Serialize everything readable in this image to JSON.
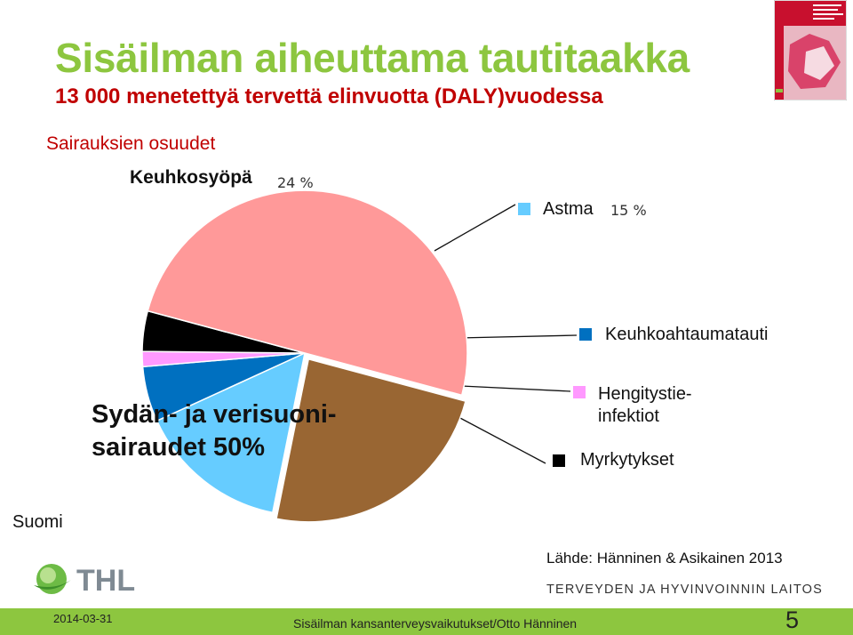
{
  "slide": {
    "title": "Sisäilman aiheuttama tautitaakka",
    "subtitle": "13 000 menetettyä tervettä elinvuotta (DALY)vuodessa",
    "country": "Suomi",
    "source": "Lähde: Hänninen & Asikainen 2013",
    "institute": "TERVEYDEN JA HYVINVOINNIN LAITOS",
    "logo_text": "THL",
    "footer": {
      "date": "2014-03-31",
      "text": "Sisäilman kansanterveysvaikutukset/Otto Hänninen",
      "page": "5"
    }
  },
  "chart_data": {
    "type": "pie",
    "title": "Sairauksien osuudet",
    "labels": {
      "lung_cancer": "Keuhkosyöpä",
      "lung_cancer_pct": "24 %",
      "asthma": "Astma",
      "asthma_pct": "15 %",
      "copd": "Keuhkoahtaumatauti",
      "respiratory": "Hengitystie-\ninfektiot",
      "poisoning": "Myrkytykset",
      "cardiovascular": "Sydän- ja verisuoni-\nsairaudet 50%"
    },
    "slices": [
      {
        "name": "Keuhkosyöpä",
        "value": 24,
        "color": "#996633"
      },
      {
        "name": "Astma",
        "value": 15,
        "color": "#66ccff"
      },
      {
        "name": "Keuhkoahtaumatauti",
        "value": 5.5,
        "color": "#0070c0"
      },
      {
        "name": "Hengitystieinfektiot",
        "value": 1.5,
        "color": "#ff99ff"
      },
      {
        "name": "Myrkytykset",
        "value": 4,
        "color": "#000000"
      },
      {
        "name": "Sydän- ja verisuonisairaudet",
        "value": 50,
        "color": "#ff9999"
      }
    ]
  }
}
